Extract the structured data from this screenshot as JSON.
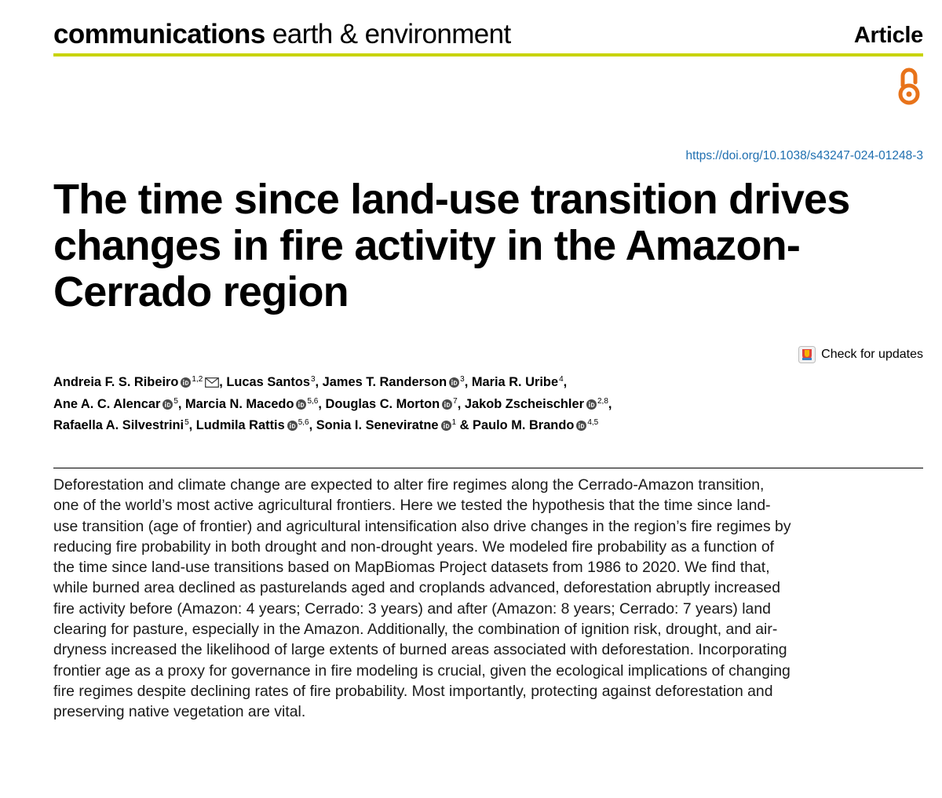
{
  "journal": {
    "brand": "communications",
    "subtitle": "earth & environment"
  },
  "article_type": "Article",
  "open_access_icon": "open-access-icon",
  "doi": "https://doi.org/10.1038/s43247-024-01248-3",
  "title": "The time since land-use transition drives changes in fire activity in the Amazon-Cerrado region",
  "check_updates": {
    "label": "Check for updates",
    "icon": "check-updates-icon"
  },
  "authors": [
    {
      "name": "Andreia F. S. Ribeiro",
      "orcid": true,
      "aff": "1,2",
      "corresponding": true,
      "sep": ", "
    },
    {
      "name": "Lucas Santos",
      "orcid": false,
      "aff": "3",
      "corresponding": false,
      "sep": ", "
    },
    {
      "name": "James T. Randerson",
      "orcid": true,
      "aff": "3",
      "corresponding": false,
      "sep": ", "
    },
    {
      "name": "Maria R. Uribe",
      "orcid": false,
      "aff": "4",
      "corresponding": false,
      "sep": ","
    },
    {
      "name": "Ane A. C. Alencar",
      "orcid": true,
      "aff": "5",
      "corresponding": false,
      "sep": ", "
    },
    {
      "name": "Marcia N. Macedo",
      "orcid": true,
      "aff": "5,6",
      "corresponding": false,
      "sep": ", "
    },
    {
      "name": "Douglas C. Morton",
      "orcid": true,
      "aff": "7",
      "corresponding": false,
      "sep": ", "
    },
    {
      "name": "Jakob Zscheischler",
      "orcid": true,
      "aff": "2,8",
      "corresponding": false,
      "sep": ","
    },
    {
      "name": "Rafaella A. Silvestrini",
      "orcid": false,
      "aff": "5",
      "corresponding": false,
      "sep": ", "
    },
    {
      "name": "Ludmila Rattis",
      "orcid": true,
      "aff": "5,6",
      "corresponding": false,
      "sep": ", "
    },
    {
      "name": "Sonia I. Seneviratne",
      "orcid": true,
      "aff": "1",
      "corresponding": false,
      "sep": " & "
    },
    {
      "name": "Paulo M. Brando",
      "orcid": true,
      "aff": "4,5",
      "corresponding": false,
      "sep": ""
    }
  ],
  "author_line_breaks_after": [
    3,
    7
  ],
  "abstract": "Deforestation and climate change are expected to alter fire regimes along the Cerrado-Amazon transition, one of the world’s most active agricultural frontiers. Here we tested the hypothesis that the time since land-use transition (age of frontier) and agricultural intensification also drive changes in the region’s fire regimes by reducing fire probability in both drought and non-drought years. We modeled fire probability as a function of the time since land-use transitions based on MapBiomas Project datasets from 1986 to 2020. We find that, while burned area declined as pasturelands aged and croplands advanced, deforestation abruptly increased fire activity before (Amazon: 4 years; Cerrado: 3 years) and after (Amazon: 8 years; Cerrado: 7 years) land clearing for pasture, especially in the Amazon. Additionally, the combination of ignition risk, drought, and air-dryness increased the likelihood of large extents of burned areas associated with deforestation. Incorporating frontier age as a proxy for governance in fire modeling is crucial, given the ecological implications of changing fire regimes despite declining rates of fire probability. Most importantly, protecting against deforestation and preserving native vegetation are vital.",
  "colors": {
    "header_rule": "#c8d300",
    "open_access": "#e8731a",
    "doi_link": "#1f6fb0",
    "orcid": "#4a4a4a"
  }
}
